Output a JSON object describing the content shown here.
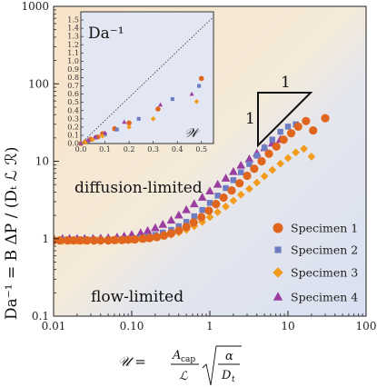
{
  "chart_data": {
    "type": "scatter",
    "xscale": "log",
    "yscale": "log",
    "xlim": [
      0.01,
      100
    ],
    "ylim": [
      0.1,
      1000
    ],
    "x_ticks": [
      "0.01",
      "0.10",
      "1",
      "10",
      "100"
    ],
    "y_ticks": [
      "0.1",
      "1",
      "10",
      "100",
      "1000"
    ],
    "ylabel": "Da⁻¹ = B ΔP / (Dₜ ℒ ℛ)",
    "xlabel_lhs": "𝒰 =",
    "xlabel_numerator": "A",
    "xlabel_numerator_sub": "cap",
    "xlabel_denominator": "ℒ",
    "xlabel_root_numerator": "α",
    "xlabel_root_denominator": "D",
    "xlabel_root_denominator_sub": "t",
    "regions": {
      "upper": "diffusion-limited",
      "lower": "flow-limited",
      "upper_color": "#f8e6cc",
      "lower_color": "#dde3f1"
    },
    "slope_triangle": {
      "top": "1",
      "side": "1"
    },
    "series": [
      {
        "name": "Specimen 1",
        "marker": "circle",
        "color": "#e0661f",
        "points": [
          [
            0.01,
            0.95
          ],
          [
            0.012,
            0.95
          ],
          [
            0.015,
            0.95
          ],
          [
            0.018,
            0.95
          ],
          [
            0.022,
            0.95
          ],
          [
            0.027,
            0.95
          ],
          [
            0.033,
            0.95
          ],
          [
            0.04,
            0.95
          ],
          [
            0.05,
            0.95
          ],
          [
            0.06,
            0.96
          ],
          [
            0.075,
            0.96
          ],
          [
            0.09,
            0.97
          ],
          [
            0.11,
            0.98
          ],
          [
            0.14,
            1.0
          ],
          [
            0.17,
            1.02
          ],
          [
            0.21,
            1.05
          ],
          [
            0.26,
            1.1
          ],
          [
            0.32,
            1.17
          ],
          [
            0.4,
            1.27
          ],
          [
            0.5,
            1.42
          ],
          [
            0.62,
            1.62
          ],
          [
            0.78,
            1.9
          ],
          [
            0.97,
            2.3
          ],
          [
            1.2,
            2.8
          ],
          [
            1.5,
            3.4
          ],
          [
            1.9,
            4.2
          ],
          [
            2.4,
            5.2
          ],
          [
            3.0,
            6.5
          ],
          [
            3.7,
            8.0
          ],
          [
            4.6,
            10.0
          ],
          [
            5.7,
            12.5
          ],
          [
            7.1,
            15.5
          ],
          [
            8.8,
            19.0
          ],
          [
            11.0,
            23.0
          ],
          [
            13.5,
            28.0
          ],
          [
            17.0,
            33.0
          ],
          [
            21.0,
            25.0
          ],
          [
            30.0,
            36.0
          ]
        ]
      },
      {
        "name": "Specimen 2",
        "marker": "square",
        "color": "#6e7cc2",
        "points": [
          [
            0.01,
            0.97
          ],
          [
            0.013,
            0.97
          ],
          [
            0.016,
            0.97
          ],
          [
            0.02,
            0.97
          ],
          [
            0.025,
            0.97
          ],
          [
            0.032,
            0.97
          ],
          [
            0.04,
            0.97
          ],
          [
            0.05,
            0.98
          ],
          [
            0.065,
            0.98
          ],
          [
            0.08,
            0.99
          ],
          [
            0.1,
            1.0
          ],
          [
            0.13,
            1.03
          ],
          [
            0.16,
            1.07
          ],
          [
            0.2,
            1.12
          ],
          [
            0.25,
            1.2
          ],
          [
            0.32,
            1.3
          ],
          [
            0.4,
            1.45
          ],
          [
            0.5,
            1.65
          ],
          [
            0.63,
            1.95
          ],
          [
            0.8,
            2.35
          ],
          [
            1.0,
            2.9
          ],
          [
            1.26,
            3.6
          ],
          [
            1.6,
            4.5
          ],
          [
            2.0,
            5.7
          ],
          [
            2.5,
            7.2
          ],
          [
            3.2,
            9.2
          ],
          [
            4.0,
            11.8
          ],
          [
            5.0,
            15.0
          ],
          [
            6.3,
            19.0
          ],
          [
            8.0,
            24.0
          ],
          [
            10.0,
            28.0
          ],
          [
            12.6,
            30.0
          ]
        ]
      },
      {
        "name": "Specimen 3",
        "marker": "diamond",
        "color": "#f29b1d",
        "points": [
          [
            0.01,
            0.93
          ],
          [
            0.013,
            0.93
          ],
          [
            0.016,
            0.93
          ],
          [
            0.02,
            0.93
          ],
          [
            0.025,
            0.93
          ],
          [
            0.032,
            0.93
          ],
          [
            0.04,
            0.94
          ],
          [
            0.05,
            0.94
          ],
          [
            0.065,
            0.95
          ],
          [
            0.08,
            0.96
          ],
          [
            0.1,
            0.97
          ],
          [
            0.13,
            0.99
          ],
          [
            0.16,
            1.01
          ],
          [
            0.2,
            1.04
          ],
          [
            0.25,
            1.08
          ],
          [
            0.32,
            1.13
          ],
          [
            0.4,
            1.2
          ],
          [
            0.5,
            1.3
          ],
          [
            0.63,
            1.45
          ],
          [
            0.8,
            1.65
          ],
          [
            1.0,
            1.9
          ],
          [
            1.26,
            2.2
          ],
          [
            1.6,
            2.6
          ],
          [
            2.0,
            3.1
          ],
          [
            2.5,
            3.7
          ],
          [
            3.2,
            4.4
          ],
          [
            4.0,
            5.3
          ],
          [
            5.0,
            6.4
          ],
          [
            6.3,
            7.7
          ],
          [
            8.0,
            9.3
          ],
          [
            10.0,
            11.0
          ],
          [
            12.6,
            13.0
          ],
          [
            16.0,
            14.5
          ],
          [
            20.0,
            11.5
          ]
        ]
      },
      {
        "name": "Specimen 4",
        "marker": "triangle",
        "color": "#9b3ea0",
        "points": [
          [
            0.01,
            1.0
          ],
          [
            0.013,
            1.0
          ],
          [
            0.016,
            1.0
          ],
          [
            0.02,
            1.0
          ],
          [
            0.025,
            1.0
          ],
          [
            0.032,
            1.0
          ],
          [
            0.04,
            1.01
          ],
          [
            0.05,
            1.02
          ],
          [
            0.065,
            1.04
          ],
          [
            0.08,
            1.07
          ],
          [
            0.1,
            1.12
          ],
          [
            0.13,
            1.18
          ],
          [
            0.16,
            1.26
          ],
          [
            0.2,
            1.37
          ],
          [
            0.25,
            1.52
          ],
          [
            0.32,
            1.72
          ],
          [
            0.4,
            2.0
          ],
          [
            0.5,
            2.35
          ],
          [
            0.63,
            2.8
          ],
          [
            0.8,
            3.4
          ],
          [
            1.0,
            4.1
          ],
          [
            1.26,
            5.0
          ],
          [
            1.6,
            6.0
          ],
          [
            2.0,
            7.3
          ],
          [
            2.5,
            8.8
          ],
          [
            3.2,
            10.6
          ],
          [
            4.0,
            12.6
          ],
          [
            5.0,
            14.8
          ],
          [
            6.3,
            17.0
          ],
          [
            8.0,
            19.0
          ]
        ]
      }
    ],
    "inset": {
      "label": "Da⁻¹",
      "xlabel": "𝒲",
      "xlim": [
        0.0,
        0.55
      ],
      "ylim": [
        0.0,
        1.6
      ],
      "x_ticks": [
        "0.0",
        "0.1",
        "0.2",
        "0.3",
        "0.4",
        "0.5"
      ],
      "y_ticks": [
        "0.0",
        "0.1",
        "0.2",
        "0.3",
        "0.4",
        "0.5",
        "0.6",
        "0.7",
        "0.8",
        "0.9",
        "1.0",
        "1.1",
        "1.2",
        "1.3",
        "1.4",
        "1.5"
      ],
      "reference_line": "y = x",
      "series": [
        {
          "name": "Specimen 1",
          "points": [
            [
              0.0,
              0.0
            ],
            [
              0.02,
              0.02
            ],
            [
              0.04,
              0.05
            ],
            [
              0.07,
              0.08
            ],
            [
              0.09,
              0.12
            ],
            [
              0.14,
              0.18
            ],
            [
              0.2,
              0.25
            ],
            [
              0.32,
              0.42
            ],
            [
              0.5,
              0.79
            ]
          ]
        },
        {
          "name": "Specimen 2",
          "points": [
            [
              0.0,
              0.0
            ],
            [
              0.03,
              0.03
            ],
            [
              0.06,
              0.07
            ],
            [
              0.1,
              0.11
            ],
            [
              0.15,
              0.17
            ],
            [
              0.24,
              0.3
            ],
            [
              0.38,
              0.54
            ],
            [
              0.49,
              0.7
            ]
          ]
        },
        {
          "name": "Specimen 3",
          "points": [
            [
              0.0,
              0.0
            ],
            [
              0.02,
              0.02
            ],
            [
              0.05,
              0.05
            ],
            [
              0.09,
              0.09
            ],
            [
              0.2,
              0.2
            ],
            [
              0.3,
              0.3
            ],
            [
              0.48,
              0.51
            ]
          ]
        },
        {
          "name": "Specimen 4",
          "points": [
            [
              0.0,
              0.0
            ],
            [
              0.03,
              0.04
            ],
            [
              0.06,
              0.08
            ],
            [
              0.1,
              0.13
            ],
            [
              0.18,
              0.26
            ],
            [
              0.33,
              0.47
            ],
            [
              0.46,
              0.6
            ]
          ]
        }
      ]
    }
  }
}
